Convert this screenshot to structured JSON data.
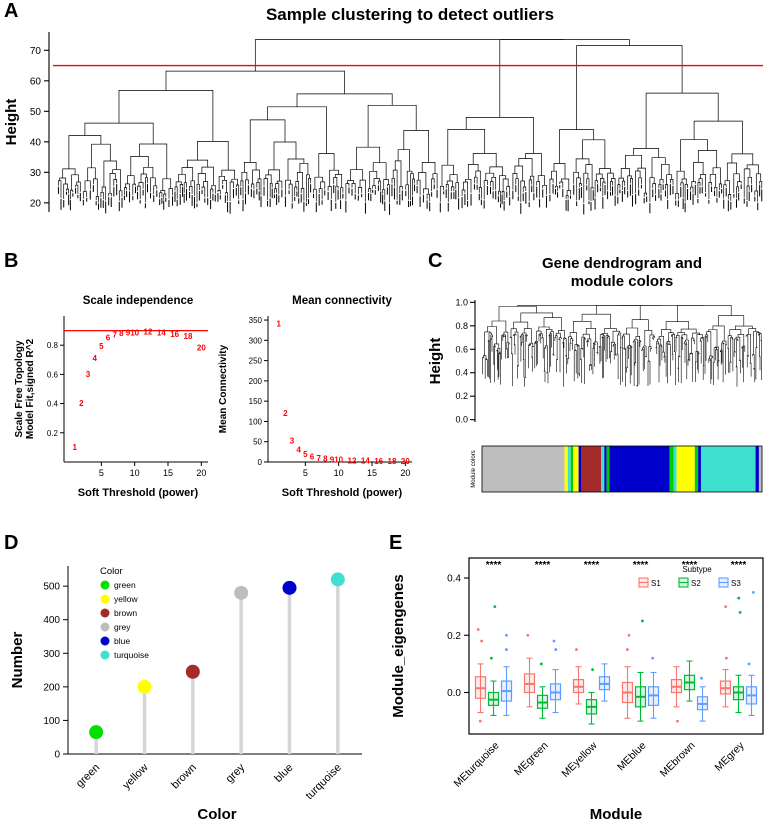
{
  "panel_labels": {
    "A": "A",
    "B": "B",
    "C": "C",
    "D": "D",
    "E": "E"
  },
  "chart_data": [
    {
      "id": "A",
      "type": "dendrogram",
      "title": "Sample clustering to detect outliers",
      "ylabel": "Height",
      "yticks": [
        20,
        30,
        40,
        50,
        60,
        70
      ],
      "ylim": [
        17,
        76
      ],
      "cutoff_line": {
        "y": 65,
        "color": "#FF0000"
      },
      "n_leaves_approx": 180,
      "leaf_height_range": [
        20,
        26.5
      ],
      "root_height_approx": 73
    },
    {
      "id": "B1",
      "type": "scatter",
      "title": "Scale independence",
      "xlabel": "Soft Threshold (power)",
      "ylabel": "Scale Free Topology\nModel Fit,signed R^2",
      "xticks": [
        5,
        10,
        15,
        20
      ],
      "yticks": [
        0.2,
        0.4,
        0.6,
        0.8
      ],
      "xlim": [
        0,
        21
      ],
      "ylim": [
        0,
        1.0
      ],
      "hline": {
        "y": 0.9,
        "color": "#FF0000"
      },
      "point_label_color": "#FF0000",
      "x": [
        1,
        2,
        3,
        4,
        5,
        6,
        7,
        8,
        9,
        10,
        12,
        14,
        16,
        18,
        20
      ],
      "y": [
        0.1,
        0.4,
        0.6,
        0.71,
        0.79,
        0.85,
        0.87,
        0.88,
        0.885,
        0.885,
        0.89,
        0.885,
        0.875,
        0.86,
        0.78
      ]
    },
    {
      "id": "B2",
      "type": "scatter",
      "title": "Mean connectivity",
      "xlabel": "Soft Threshold (power)",
      "ylabel": "Mean Connectivity",
      "xticks": [
        5,
        10,
        15,
        20
      ],
      "yticks": [
        0,
        50,
        100,
        150,
        200,
        250,
        300,
        350
      ],
      "xlim": [
        0,
        21
      ],
      "ylim": [
        0,
        360
      ],
      "point_label_color": "#FF0000",
      "x": [
        1,
        2,
        3,
        4,
        5,
        6,
        7,
        8,
        9,
        10,
        12,
        14,
        16,
        18,
        20
      ],
      "y": [
        340,
        120,
        52,
        30,
        18,
        12,
        9,
        7,
        5.5,
        4.5,
        3,
        2.2,
        1.7,
        1.3,
        1
      ]
    },
    {
      "id": "C",
      "type": "dendrogram",
      "title": "Gene dendrogram and\nmodule colors",
      "ylabel": "Height",
      "yticks": [
        0.0,
        0.2,
        0.4,
        0.6,
        0.8,
        1.0
      ],
      "ylim": [
        0,
        1.0
      ],
      "bar_label": "Module colors",
      "module_segments": [
        [
          "#bebebe",
          0.295
        ],
        [
          "#ffff00",
          0.012
        ],
        [
          "#40e0d0",
          0.01
        ],
        [
          "#00cd00",
          0.008
        ],
        [
          "#ffff00",
          0.02
        ],
        [
          "#0000cd",
          0.01
        ],
        [
          "#a52a2a",
          0.07
        ],
        [
          "#40e0d0",
          0.012
        ],
        [
          "#0000cd",
          0.008
        ],
        [
          "#00cd00",
          0.01
        ],
        [
          "#0000cd",
          0.215
        ],
        [
          "#00cd00",
          0.015
        ],
        [
          "#40e0d0",
          0.01
        ],
        [
          "#ffff00",
          0.065
        ],
        [
          "#00cd00",
          0.012
        ],
        [
          "#0000cd",
          0.01
        ],
        [
          "#40e0d0",
          0.195
        ],
        [
          "#0000cd",
          0.012
        ],
        [
          "#bebebe",
          0.011
        ]
      ]
    },
    {
      "id": "D",
      "type": "lollipop",
      "xlabel": "Color",
      "ylabel": "Number",
      "legend_title": "Color",
      "categories": [
        "green",
        "yellow",
        "brown",
        "grey",
        "blue",
        "turquoise"
      ],
      "values": [
        65,
        200,
        245,
        480,
        495,
        520
      ],
      "colors": [
        "#00e100",
        "#ffff00",
        "#a52a2a",
        "#bebebe",
        "#0000cd",
        "#40e0d0"
      ],
      "yticks": [
        0,
        100,
        200,
        300,
        400,
        500
      ],
      "ylim": [
        0,
        560
      ],
      "stem_color": "#d6d6d6"
    },
    {
      "id": "E",
      "type": "boxplot",
      "xlabel": "Module",
      "ylabel": "Module_eigengenes",
      "legend_title": "Subtype",
      "categories": [
        "MEturquoise",
        "MEgreen",
        "MEyellow",
        "MEblue",
        "MEbrown",
        "MEgrey"
      ],
      "significance": [
        "****",
        "****",
        "****",
        "****",
        "****",
        "****"
      ],
      "yticks": [
        0.0,
        0.2,
        0.4
      ],
      "ylim": [
        -0.145,
        0.47
      ],
      "series": [
        {
          "name": "S1",
          "color": "#F8766D",
          "boxes": [
            [
              -0.02,
              0.015,
              0.055,
              -0.07,
              0.1
            ],
            [
              0.0,
              0.03,
              0.065,
              -0.05,
              0.12
            ],
            [
              0.0,
              0.02,
              0.045,
              -0.04,
              0.09
            ],
            [
              -0.035,
              0.0,
              0.035,
              -0.09,
              0.09
            ],
            [
              0.0,
              0.02,
              0.045,
              -0.05,
              0.09
            ],
            [
              -0.005,
              0.015,
              0.04,
              -0.05,
              0.08
            ]
          ],
          "outliers": [
            [
              0.18,
              0.22,
              -0.1
            ],
            [
              0.2
            ],
            [
              0.15
            ],
            [
              0.15,
              0.2
            ],
            [
              -0.1
            ],
            [
              0.12,
              0.3
            ]
          ]
        },
        {
          "name": "S2",
          "color": "#00BA38",
          "boxes": [
            [
              -0.045,
              -0.025,
              0.0,
              -0.08,
              0.04
            ],
            [
              -0.055,
              -0.035,
              -0.01,
              -0.09,
              0.02
            ],
            [
              -0.075,
              -0.05,
              -0.025,
              -0.11,
              0.0
            ],
            [
              -0.05,
              -0.015,
              0.02,
              -0.1,
              0.07
            ],
            [
              0.01,
              0.035,
              0.06,
              -0.03,
              0.11
            ],
            [
              -0.025,
              0.0,
              0.02,
              -0.07,
              0.06
            ]
          ],
          "outliers": [
            [
              0.12,
              0.3
            ],
            [
              0.1
            ],
            [
              0.08
            ],
            [
              0.25
            ],
            [],
            [
              0.28,
              0.33
            ]
          ]
        },
        {
          "name": "S3",
          "color": "#619CFF",
          "boxes": [
            [
              -0.03,
              0.005,
              0.04,
              -0.08,
              0.09
            ],
            [
              -0.025,
              0.0,
              0.03,
              -0.07,
              0.08
            ],
            [
              0.01,
              0.03,
              0.055,
              -0.03,
              0.1
            ],
            [
              -0.045,
              -0.01,
              0.02,
              -0.09,
              0.07
            ],
            [
              -0.06,
              -0.04,
              -0.015,
              -0.1,
              0.02
            ],
            [
              -0.04,
              -0.01,
              0.02,
              -0.08,
              0.06
            ]
          ],
          "outliers": [
            [
              0.15,
              0.2
            ],
            [
              0.15,
              0.18
            ],
            [],
            [
              0.12
            ],
            [
              0.05
            ],
            [
              0.1,
              0.35
            ]
          ]
        }
      ]
    }
  ]
}
